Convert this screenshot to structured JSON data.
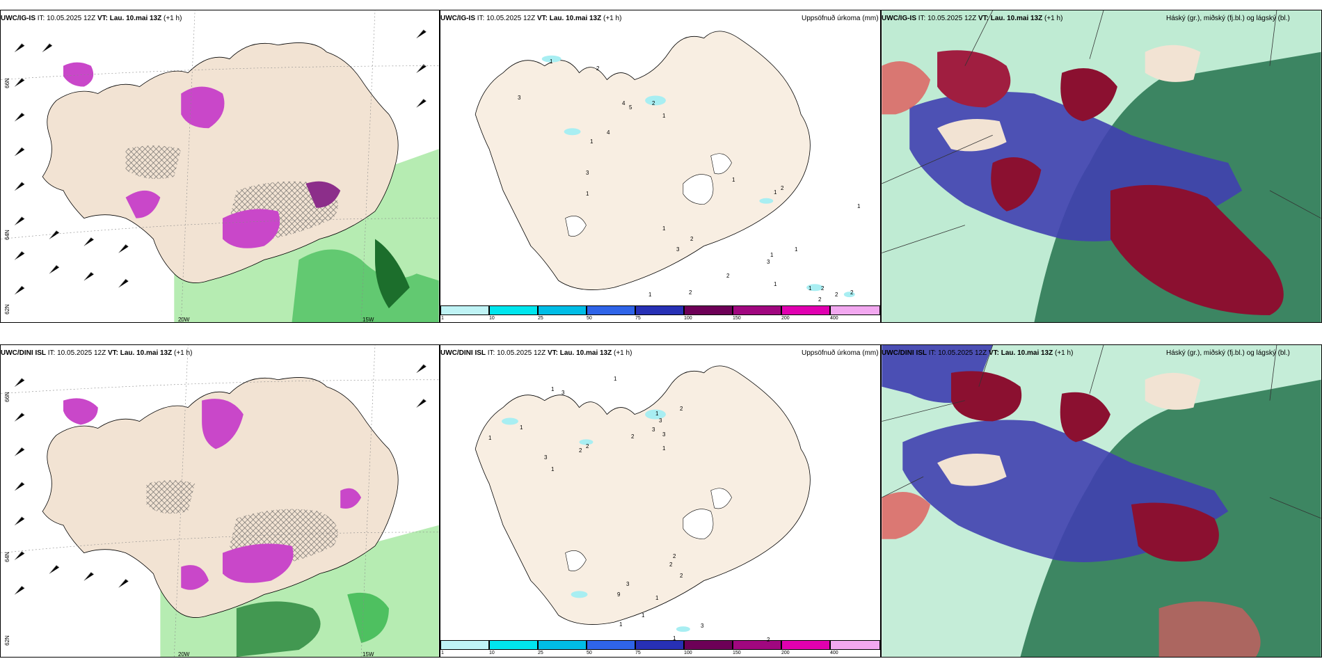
{
  "rows": [
    {
      "model": "UWC/IG-IS",
      "it": "IT: 10.05.2025 12Z",
      "vt_label": "VT:",
      "vt_value": "Lau. 10.mai 13Z",
      "lead": "(+1 h)",
      "precip_title": "Uppsöfnuð úrkoma (mm)",
      "cloud_title": "Háský (gr.), miðský (fj.bl.) og lágský (bl.)",
      "lat_labels": [
        "66N",
        "64N",
        "62N"
      ],
      "lon_labels": [
        "20W",
        "15W"
      ],
      "precip_labels": [
        "1",
        "2",
        "3",
        "4",
        "5",
        "2",
        "1",
        "1",
        "4",
        "3",
        "1",
        "1",
        "3",
        "2",
        "1",
        "1",
        "2",
        "1",
        "2",
        "2",
        "1",
        "3",
        "2",
        "2",
        "1",
        "1",
        "1",
        "2",
        "2",
        "1"
      ]
    },
    {
      "model": "UWC/DINI ISL",
      "it": "IT: 10.05.2025 12Z",
      "vt_label": "VT:",
      "vt_value": "Lau. 10.mai 13Z",
      "lead": "(+1 h)",
      "precip_title": "Uppsöfnuð úrkoma (mm)",
      "cloud_title": "Háský (gr.), miðský (fj.bl.) og lágský (bl.)",
      "lat_labels": [
        "66N",
        "64N",
        "62N"
      ],
      "lon_labels": [
        "20W",
        "15W"
      ],
      "precip_labels": [
        "1",
        "3",
        "1",
        "1",
        "3",
        "2",
        "3",
        "3",
        "2",
        "1",
        "2",
        "2",
        "1",
        "1",
        "3",
        "1",
        "2",
        "2",
        "2",
        "9",
        "3",
        "1",
        "1",
        "1",
        "3",
        "1",
        "2"
      ]
    }
  ],
  "colorbar": {
    "ticks": [
      "1",
      "10",
      "25",
      "50",
      "75",
      "100",
      "150",
      "200",
      "400"
    ],
    "colors": [
      "#bff3f5",
      "#00e6ee",
      "#00bde6",
      "#2f64e8",
      "#2730b5",
      "#6d0057",
      "#a0077f",
      "#e000b0",
      "#f2a8f0"
    ]
  },
  "colors": {
    "land": "#f8eee2",
    "precip_green": "#8de28c",
    "precip_dark_green": "#1c6e2c",
    "precip_magenta": "#c947c9",
    "cloud_high": "#5ec99a",
    "cloud_mid": "#3d3db0",
    "cloud_low": "#8b1030"
  }
}
